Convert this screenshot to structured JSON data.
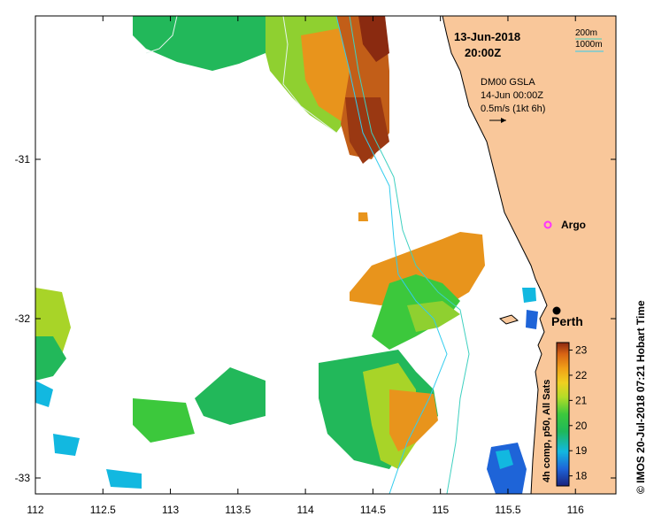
{
  "header": {
    "date": "13-Jun-2018",
    "time": "20:00Z"
  },
  "legend_depth": {
    "label_200": "200m",
    "label_1000": "1000m",
    "line_color": "#3fd0c0"
  },
  "overlay": {
    "line1": "DM00 GSLA",
    "line2": "14-Jun 00:00Z",
    "line3": "0.5m/s (1kt 6h)"
  },
  "places": {
    "argo": "Argo",
    "perth": "Perth"
  },
  "colorbar": {
    "title": "4h comp, p50, All Sats",
    "ticks": [
      "23",
      "22",
      "21",
      "20",
      "19",
      "18"
    ],
    "tick_values": [
      23,
      22,
      21,
      20,
      19,
      18
    ],
    "vmin": 17.6,
    "vmax": 23.3
  },
  "side_label": "© IMOS 20-Jul-2018 07:21 Hobart Time",
  "axes": {
    "x_ticks": [
      "112",
      "112.5",
      "113",
      "113.5",
      "114",
      "114.5",
      "115",
      "115.5",
      "116"
    ],
    "x_values": [
      112,
      112.5,
      113,
      113.5,
      114,
      114.5,
      115,
      115.5,
      116
    ],
    "y_ticks": [
      "-31",
      "-32",
      "-33"
    ],
    "y_values": [
      -31,
      -32,
      -33
    ],
    "lon_range": [
      112,
      116.3
    ],
    "lat_range": [
      -33.1,
      -30.1
    ]
  },
  "colors": {
    "land": "#f9c79a",
    "iso200": "#3fd0c0",
    "iso1000": "#33ccee",
    "argo_marker": "#ff33ff"
  }
}
